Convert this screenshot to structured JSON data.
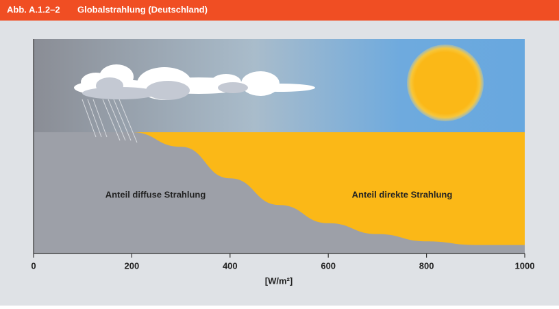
{
  "chart_data": {
    "type": "area",
    "figure_label": "Abb. A.1.2–2",
    "title": "Globalstrahlung (Deutschland)",
    "xlabel": "[W/m²]",
    "annotations": [
      "Anteil diffuse Strahlung",
      "Anteil direkte Strahlung"
    ],
    "x": [
      0,
      100,
      200,
      300,
      400,
      500,
      600,
      700,
      800,
      900,
      1000
    ],
    "values": [
      100,
      100,
      100,
      88,
      62,
      40,
      25,
      16,
      10,
      7,
      7
    ],
    "xlim": [
      0,
      1000
    ],
    "ylim": [
      0,
      100
    ],
    "xticks": [
      0,
      200,
      400,
      600,
      800,
      1000
    ],
    "colors": {
      "diffuse": "#9da0a8",
      "direct": "#fbb817"
    }
  }
}
